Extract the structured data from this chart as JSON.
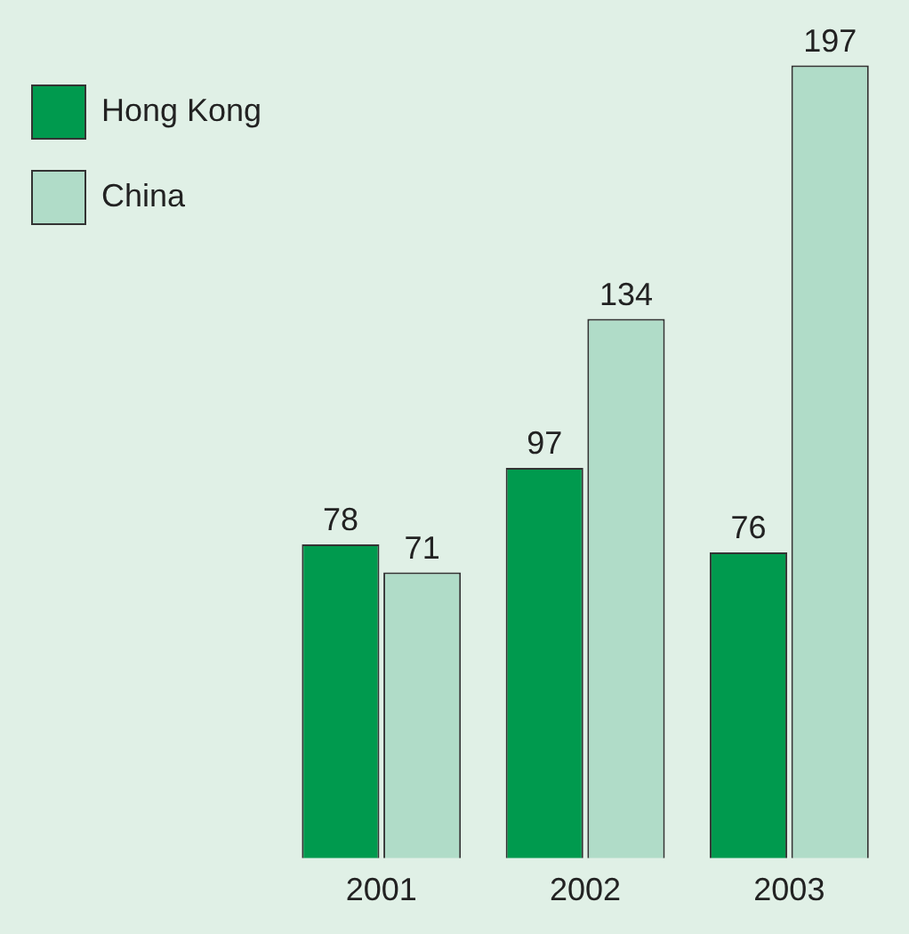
{
  "chart_data": {
    "type": "bar",
    "categories": [
      "2001",
      "2002",
      "2003"
    ],
    "series": [
      {
        "name": "Hong Kong",
        "color": "#009a4e",
        "values": [
          78,
          97,
          76
        ]
      },
      {
        "name": "China",
        "color": "#b0dcc8",
        "values": [
          71,
          134,
          197
        ]
      }
    ],
    "data_labels": true,
    "legend": "top left",
    "grid": false
  }
}
